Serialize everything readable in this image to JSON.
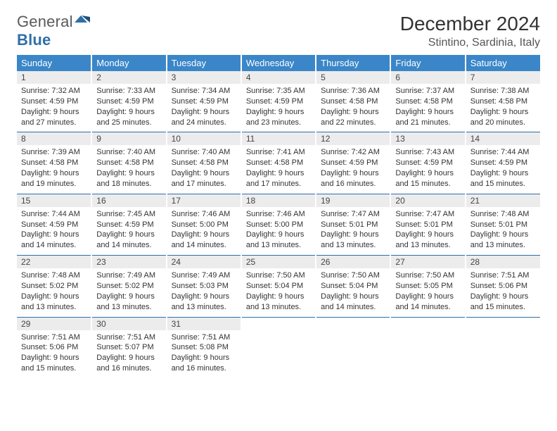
{
  "logo": {
    "text1": "General",
    "text2": "Blue"
  },
  "title": "December 2024",
  "location": "Stintino, Sardinia, Italy",
  "colors": {
    "header_bg": "#3a86c8",
    "header_text": "#ffffff",
    "row_divider": "#2f6fa8",
    "daynum_bg": "#ececec",
    "body_text": "#333333"
  },
  "weekdays": [
    "Sunday",
    "Monday",
    "Tuesday",
    "Wednesday",
    "Thursday",
    "Friday",
    "Saturday"
  ],
  "weeks": [
    [
      {
        "n": "1",
        "sr": "7:32 AM",
        "ss": "4:59 PM",
        "dl": "9 hours and 27 minutes."
      },
      {
        "n": "2",
        "sr": "7:33 AM",
        "ss": "4:59 PM",
        "dl": "9 hours and 25 minutes."
      },
      {
        "n": "3",
        "sr": "7:34 AM",
        "ss": "4:59 PM",
        "dl": "9 hours and 24 minutes."
      },
      {
        "n": "4",
        "sr": "7:35 AM",
        "ss": "4:59 PM",
        "dl": "9 hours and 23 minutes."
      },
      {
        "n": "5",
        "sr": "7:36 AM",
        "ss": "4:58 PM",
        "dl": "9 hours and 22 minutes."
      },
      {
        "n": "6",
        "sr": "7:37 AM",
        "ss": "4:58 PM",
        "dl": "9 hours and 21 minutes."
      },
      {
        "n": "7",
        "sr": "7:38 AM",
        "ss": "4:58 PM",
        "dl": "9 hours and 20 minutes."
      }
    ],
    [
      {
        "n": "8",
        "sr": "7:39 AM",
        "ss": "4:58 PM",
        "dl": "9 hours and 19 minutes."
      },
      {
        "n": "9",
        "sr": "7:40 AM",
        "ss": "4:58 PM",
        "dl": "9 hours and 18 minutes."
      },
      {
        "n": "10",
        "sr": "7:40 AM",
        "ss": "4:58 PM",
        "dl": "9 hours and 17 minutes."
      },
      {
        "n": "11",
        "sr": "7:41 AM",
        "ss": "4:58 PM",
        "dl": "9 hours and 17 minutes."
      },
      {
        "n": "12",
        "sr": "7:42 AM",
        "ss": "4:59 PM",
        "dl": "9 hours and 16 minutes."
      },
      {
        "n": "13",
        "sr": "7:43 AM",
        "ss": "4:59 PM",
        "dl": "9 hours and 15 minutes."
      },
      {
        "n": "14",
        "sr": "7:44 AM",
        "ss": "4:59 PM",
        "dl": "9 hours and 15 minutes."
      }
    ],
    [
      {
        "n": "15",
        "sr": "7:44 AM",
        "ss": "4:59 PM",
        "dl": "9 hours and 14 minutes."
      },
      {
        "n": "16",
        "sr": "7:45 AM",
        "ss": "4:59 PM",
        "dl": "9 hours and 14 minutes."
      },
      {
        "n": "17",
        "sr": "7:46 AM",
        "ss": "5:00 PM",
        "dl": "9 hours and 14 minutes."
      },
      {
        "n": "18",
        "sr": "7:46 AM",
        "ss": "5:00 PM",
        "dl": "9 hours and 13 minutes."
      },
      {
        "n": "19",
        "sr": "7:47 AM",
        "ss": "5:01 PM",
        "dl": "9 hours and 13 minutes."
      },
      {
        "n": "20",
        "sr": "7:47 AM",
        "ss": "5:01 PM",
        "dl": "9 hours and 13 minutes."
      },
      {
        "n": "21",
        "sr": "7:48 AM",
        "ss": "5:01 PM",
        "dl": "9 hours and 13 minutes."
      }
    ],
    [
      {
        "n": "22",
        "sr": "7:48 AM",
        "ss": "5:02 PM",
        "dl": "9 hours and 13 minutes."
      },
      {
        "n": "23",
        "sr": "7:49 AM",
        "ss": "5:02 PM",
        "dl": "9 hours and 13 minutes."
      },
      {
        "n": "24",
        "sr": "7:49 AM",
        "ss": "5:03 PM",
        "dl": "9 hours and 13 minutes."
      },
      {
        "n": "25",
        "sr": "7:50 AM",
        "ss": "5:04 PM",
        "dl": "9 hours and 13 minutes."
      },
      {
        "n": "26",
        "sr": "7:50 AM",
        "ss": "5:04 PM",
        "dl": "9 hours and 14 minutes."
      },
      {
        "n": "27",
        "sr": "7:50 AM",
        "ss": "5:05 PM",
        "dl": "9 hours and 14 minutes."
      },
      {
        "n": "28",
        "sr": "7:51 AM",
        "ss": "5:06 PM",
        "dl": "9 hours and 15 minutes."
      }
    ],
    [
      {
        "n": "29",
        "sr": "7:51 AM",
        "ss": "5:06 PM",
        "dl": "9 hours and 15 minutes."
      },
      {
        "n": "30",
        "sr": "7:51 AM",
        "ss": "5:07 PM",
        "dl": "9 hours and 16 minutes."
      },
      {
        "n": "31",
        "sr": "7:51 AM",
        "ss": "5:08 PM",
        "dl": "9 hours and 16 minutes."
      },
      null,
      null,
      null,
      null
    ]
  ],
  "labels": {
    "sunrise": "Sunrise:",
    "sunset": "Sunset:",
    "daylight": "Daylight:"
  }
}
